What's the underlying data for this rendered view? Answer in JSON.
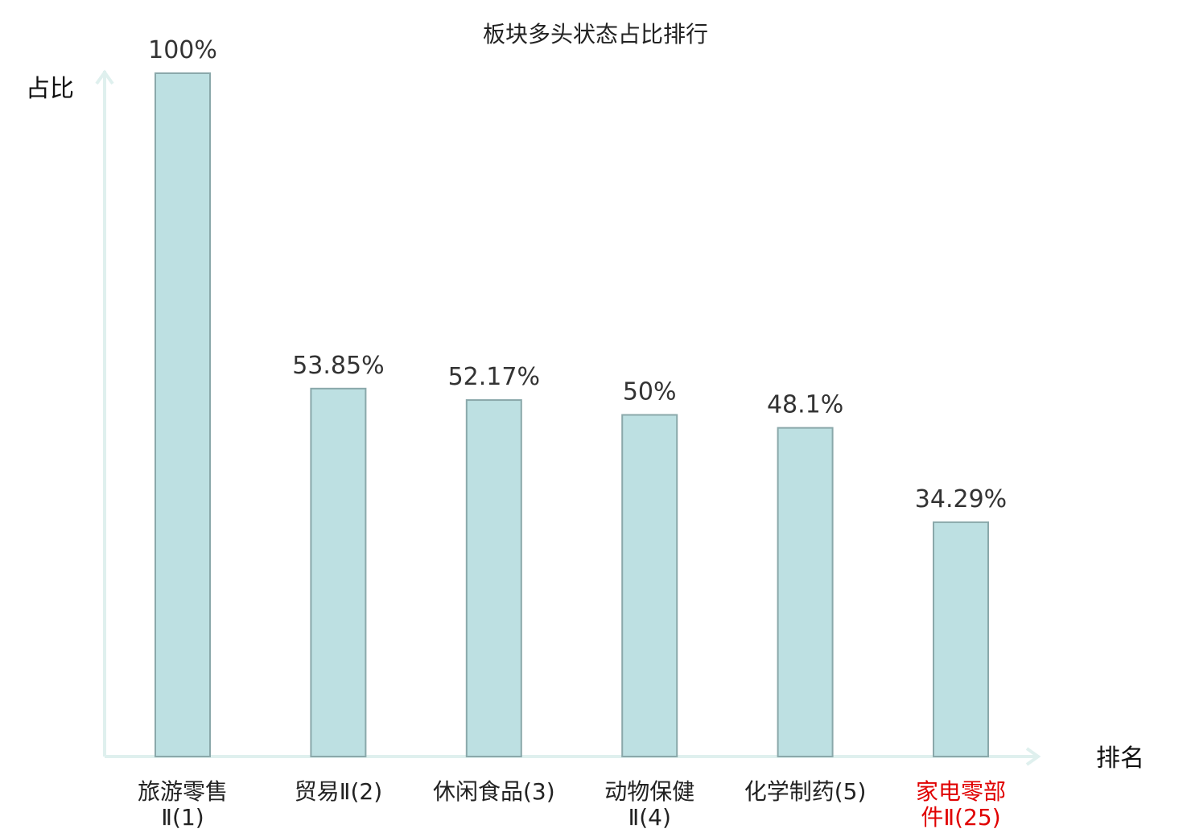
{
  "chart_data": {
    "type": "bar",
    "title": "板块多头状态占比排行",
    "ylabel": "占比",
    "xlabel": "排名",
    "ylim": [
      0,
      100
    ],
    "grid": false,
    "categories": [
      [
        "旅游零售",
        "Ⅱ(1)"
      ],
      [
        "贸易Ⅱ(2)"
      ],
      [
        "休闲食品(3)"
      ],
      [
        "动物保健",
        "Ⅱ(4)"
      ],
      [
        "化学制药(5)"
      ],
      [
        "家电零部",
        "件Ⅱ(25)"
      ]
    ],
    "values": [
      100,
      53.85,
      52.17,
      50,
      48.1,
      34.29
    ],
    "value_labels": [
      "100%",
      "53.85%",
      "52.17%",
      "50%",
      "48.1%",
      "34.29%"
    ],
    "highlight_index": 5,
    "colors": {
      "bar_fill": "#bde0e2",
      "bar_stroke": "#8aa8aa",
      "axis": "#dff0ee",
      "category_text": "#222222",
      "highlight_text": "#e00000"
    }
  }
}
